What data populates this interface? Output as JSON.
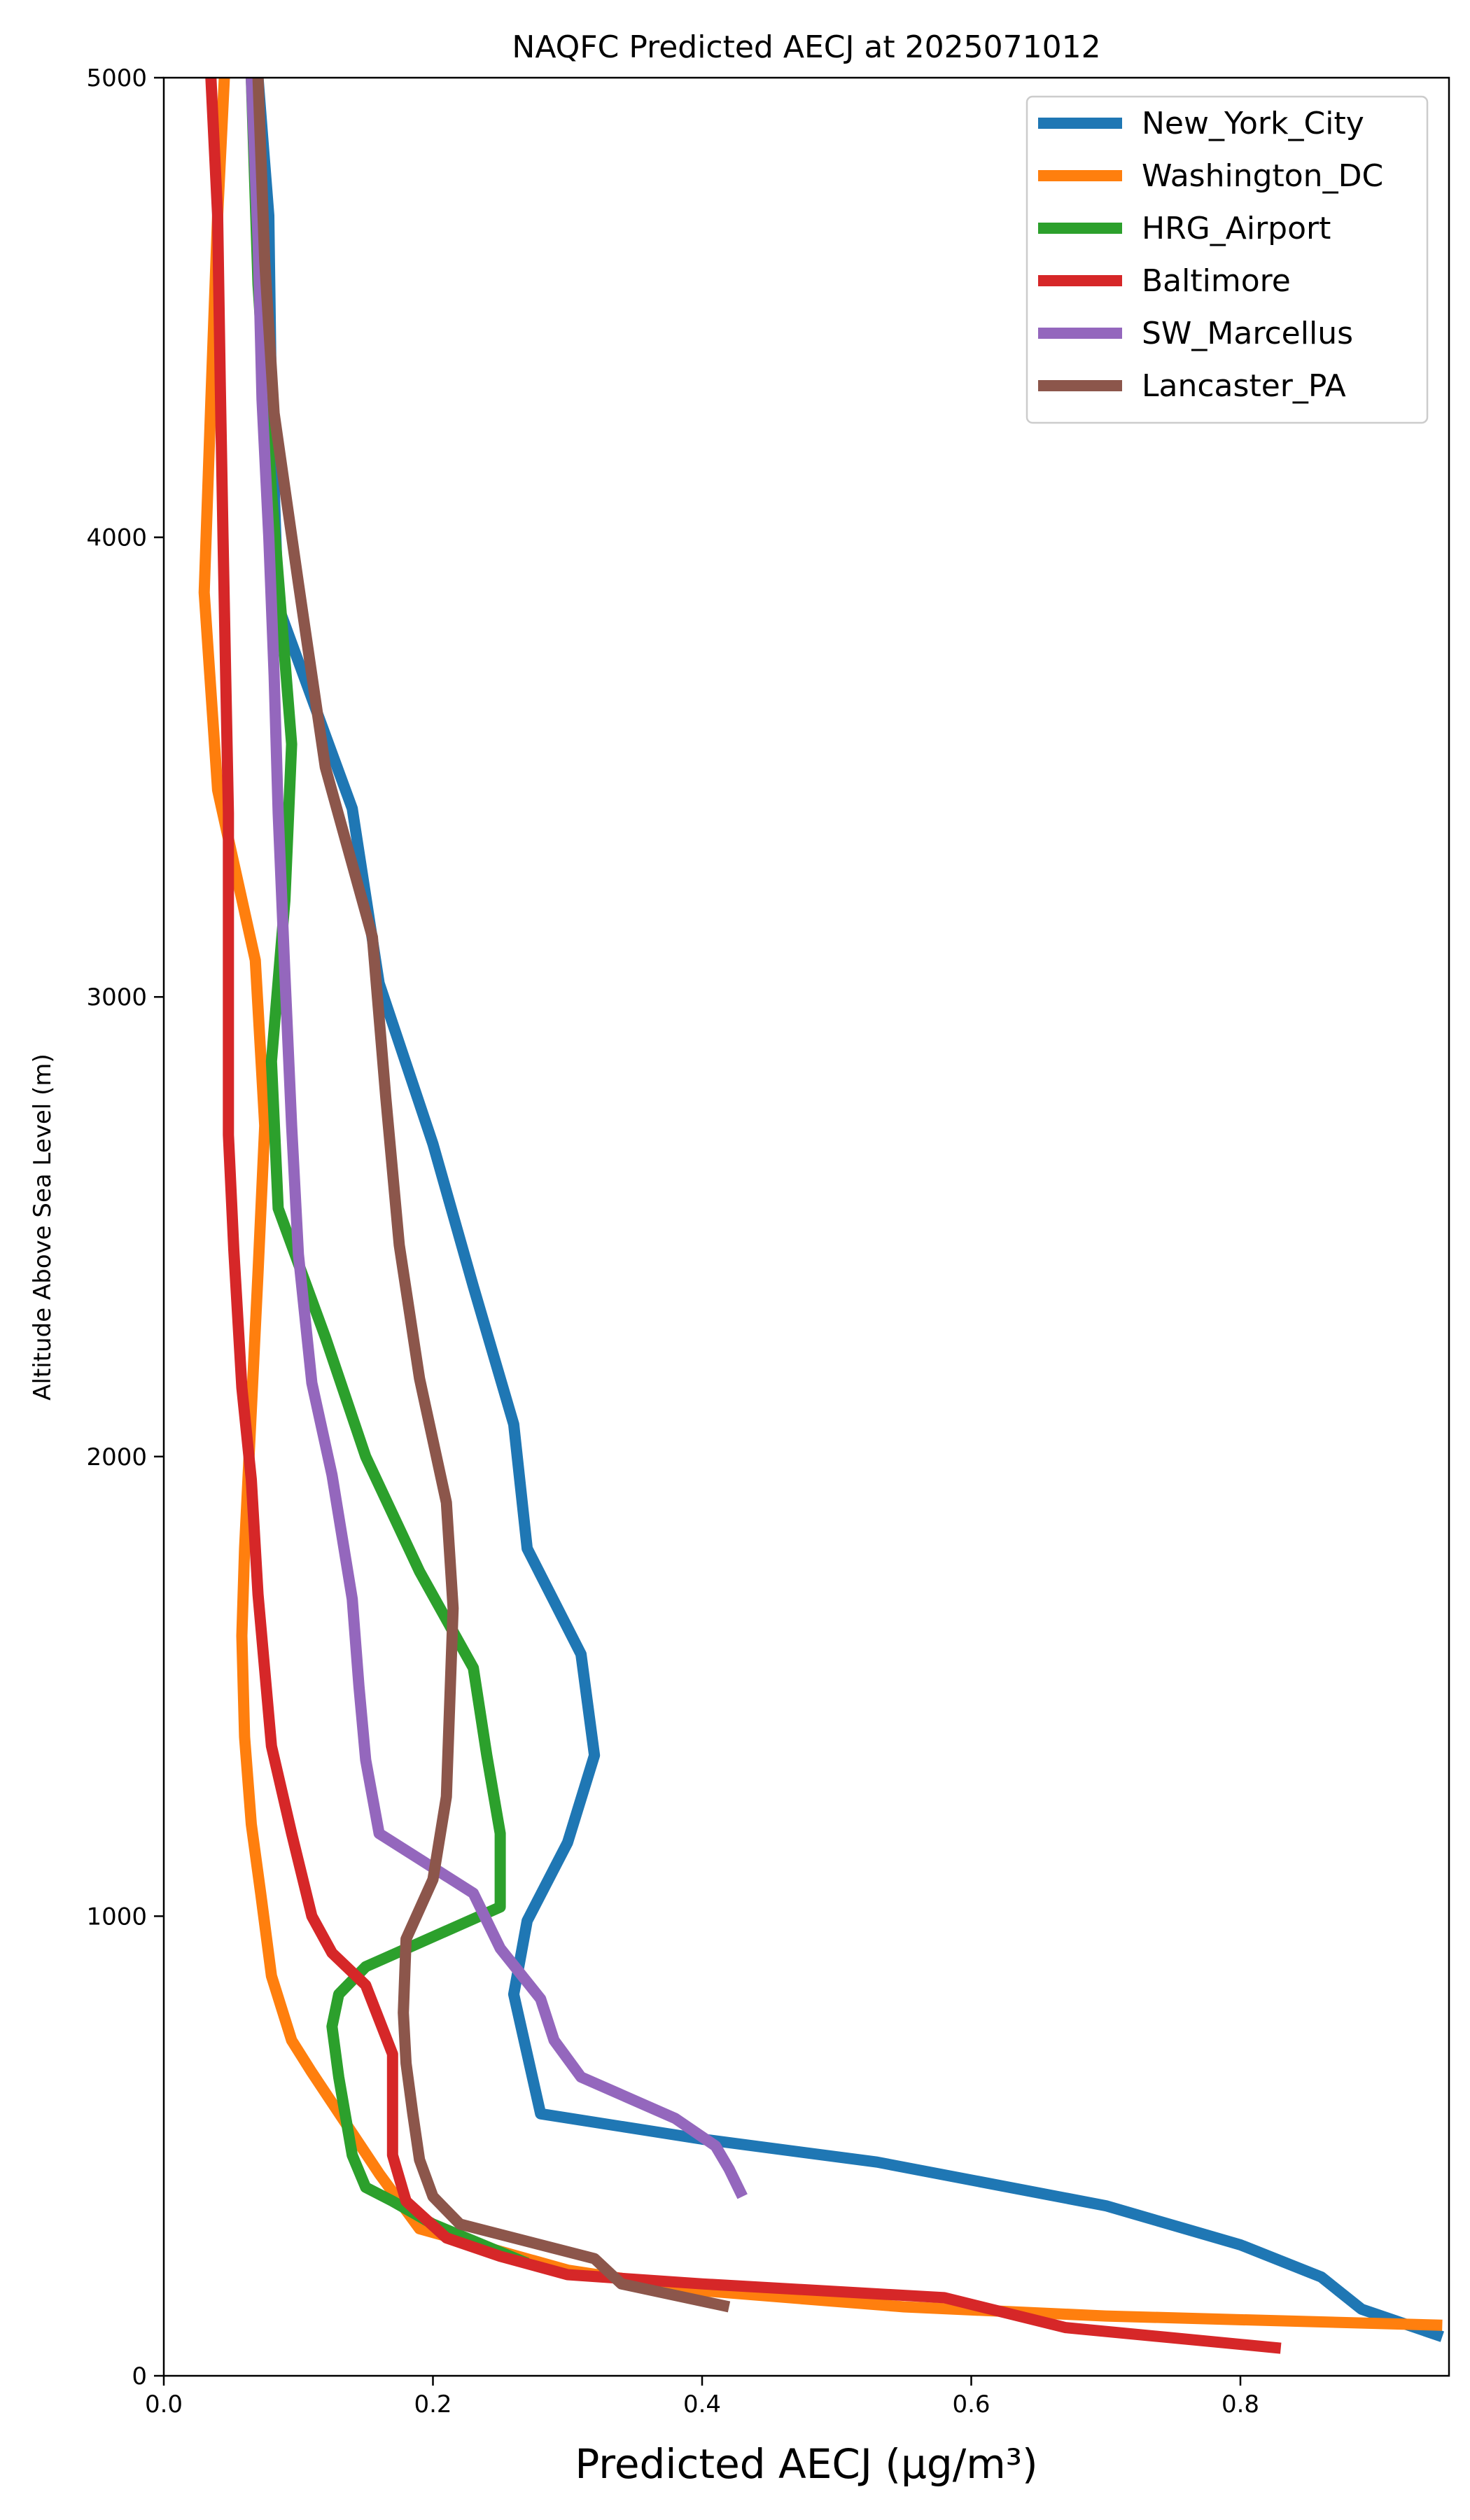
{
  "chart_data": {
    "type": "line",
    "title": "NAQFC Predicted AECJ at 2025071012",
    "xlabel": "Predicted AECJ (μg/m³)",
    "ylabel": "Altitude Above Sea Level (m)",
    "xlim": [
      0,
      0.955
    ],
    "ylim": [
      0,
      5000
    ],
    "xticks": [
      0.0,
      0.2,
      0.4,
      0.6,
      0.8
    ],
    "xtick_labels": [
      "0.0",
      "0.2",
      "0.4",
      "0.6",
      "0.8"
    ],
    "yticks": [
      0,
      1000,
      2000,
      3000,
      4000,
      5000
    ],
    "ytick_labels": [
      "0",
      "1000",
      "2000",
      "3000",
      "4000",
      "5000"
    ],
    "grid": false,
    "legend_position": "top-right",
    "series": [
      {
        "name": "New_York_City",
        "color": "#1f77b4",
        "points": [
          [
            0.95,
            85
          ],
          [
            0.89,
            145
          ],
          [
            0.86,
            215
          ],
          [
            0.8,
            285
          ],
          [
            0.7,
            370
          ],
          [
            0.53,
            465
          ],
          [
            0.4,
            515
          ],
          [
            0.28,
            570
          ],
          [
            0.27,
            700
          ],
          [
            0.26,
            830
          ],
          [
            0.27,
            990
          ],
          [
            0.3,
            1160
          ],
          [
            0.32,
            1350
          ],
          [
            0.31,
            1570
          ],
          [
            0.27,
            1800
          ],
          [
            0.26,
            2070
          ],
          [
            0.23,
            2370
          ],
          [
            0.2,
            2680
          ],
          [
            0.16,
            3030
          ],
          [
            0.14,
            3410
          ],
          [
            0.085,
            3850
          ],
          [
            0.08,
            4280
          ],
          [
            0.078,
            4700
          ],
          [
            0.07,
            5000
          ]
        ]
      },
      {
        "name": "Washington_DC",
        "color": "#ff7f0e",
        "points": [
          [
            0.95,
            110
          ],
          [
            0.7,
            130
          ],
          [
            0.55,
            150
          ],
          [
            0.4,
            185
          ],
          [
            0.3,
            230
          ],
          [
            0.19,
            320
          ],
          [
            0.16,
            440
          ],
          [
            0.11,
            660
          ],
          [
            0.095,
            730
          ],
          [
            0.08,
            870
          ],
          [
            0.072,
            1050
          ],
          [
            0.065,
            1200
          ],
          [
            0.06,
            1390
          ],
          [
            0.058,
            1610
          ],
          [
            0.06,
            1800
          ],
          [
            0.065,
            2100
          ],
          [
            0.07,
            2400
          ],
          [
            0.075,
            2720
          ],
          [
            0.068,
            3080
          ],
          [
            0.04,
            3450
          ],
          [
            0.03,
            3880
          ],
          [
            0.035,
            4300
          ],
          [
            0.04,
            4700
          ],
          [
            0.045,
            5000
          ]
        ]
      },
      {
        "name": "HRG_Airport",
        "color": "#2ca02c",
        "points": [
          [
            0.27,
            245
          ],
          [
            0.2,
            330
          ],
          [
            0.17,
            380
          ],
          [
            0.15,
            410
          ],
          [
            0.14,
            480
          ],
          [
            0.13,
            650
          ],
          [
            0.125,
            760
          ],
          [
            0.13,
            830
          ],
          [
            0.15,
            890
          ],
          [
            0.25,
            1020
          ],
          [
            0.25,
            1180
          ],
          [
            0.24,
            1350
          ],
          [
            0.23,
            1540
          ],
          [
            0.19,
            1750
          ],
          [
            0.15,
            2000
          ],
          [
            0.12,
            2260
          ],
          [
            0.085,
            2540
          ],
          [
            0.08,
            2860
          ],
          [
            0.09,
            3210
          ],
          [
            0.095,
            3550
          ],
          [
            0.08,
            4100
          ],
          [
            0.07,
            4550
          ],
          [
            0.065,
            5000
          ]
        ]
      },
      {
        "name": "Baltimore",
        "color": "#d62728",
        "points": [
          [
            0.83,
            60
          ],
          [
            0.67,
            105
          ],
          [
            0.58,
            170
          ],
          [
            0.4,
            200
          ],
          [
            0.3,
            220
          ],
          [
            0.25,
            260
          ],
          [
            0.21,
            300
          ],
          [
            0.18,
            380
          ],
          [
            0.17,
            480
          ],
          [
            0.17,
            580
          ],
          [
            0.17,
            700
          ],
          [
            0.15,
            850
          ],
          [
            0.125,
            920
          ],
          [
            0.11,
            1000
          ],
          [
            0.095,
            1180
          ],
          [
            0.08,
            1370
          ],
          [
            0.07,
            1700
          ],
          [
            0.065,
            1950
          ],
          [
            0.058,
            2150
          ],
          [
            0.052,
            2450
          ],
          [
            0.048,
            2700
          ],
          [
            0.048,
            3050
          ],
          [
            0.048,
            3400
          ],
          [
            0.046,
            3700
          ],
          [
            0.044,
            4000
          ],
          [
            0.042,
            4330
          ],
          [
            0.04,
            4700
          ],
          [
            0.035,
            5000
          ]
        ]
      },
      {
        "name": "SW_Marcellus",
        "color": "#9467bd",
        "points": [
          [
            0.43,
            390
          ],
          [
            0.42,
            450
          ],
          [
            0.41,
            500
          ],
          [
            0.38,
            560
          ],
          [
            0.31,
            650
          ],
          [
            0.29,
            730
          ],
          [
            0.28,
            820
          ],
          [
            0.25,
            930
          ],
          [
            0.23,
            1050
          ],
          [
            0.16,
            1180
          ],
          [
            0.15,
            1340
          ],
          [
            0.145,
            1500
          ],
          [
            0.14,
            1690
          ],
          [
            0.125,
            1960
          ],
          [
            0.11,
            2160
          ],
          [
            0.1,
            2440
          ],
          [
            0.095,
            2720
          ],
          [
            0.09,
            3050
          ],
          [
            0.085,
            3400
          ],
          [
            0.082,
            3700
          ],
          [
            0.078,
            4000
          ],
          [
            0.073,
            4300
          ],
          [
            0.07,
            4650
          ],
          [
            0.065,
            5000
          ]
        ]
      },
      {
        "name": "Lancaster_PA",
        "color": "#8c564b",
        "points": [
          [
            0.42,
            150
          ],
          [
            0.34,
            200
          ],
          [
            0.32,
            255
          ],
          [
            0.22,
            330
          ],
          [
            0.2,
            390
          ],
          [
            0.19,
            470
          ],
          [
            0.185,
            570
          ],
          [
            0.18,
            680
          ],
          [
            0.178,
            790
          ],
          [
            0.18,
            950
          ],
          [
            0.2,
            1080
          ],
          [
            0.21,
            1260
          ],
          [
            0.215,
            1670
          ],
          [
            0.21,
            1900
          ],
          [
            0.19,
            2170
          ],
          [
            0.175,
            2460
          ],
          [
            0.165,
            2780
          ],
          [
            0.155,
            3130
          ],
          [
            0.12,
            3500
          ],
          [
            0.1,
            3900
          ],
          [
            0.082,
            4270
          ],
          [
            0.075,
            4600
          ],
          [
            0.07,
            5000
          ]
        ]
      }
    ]
  }
}
